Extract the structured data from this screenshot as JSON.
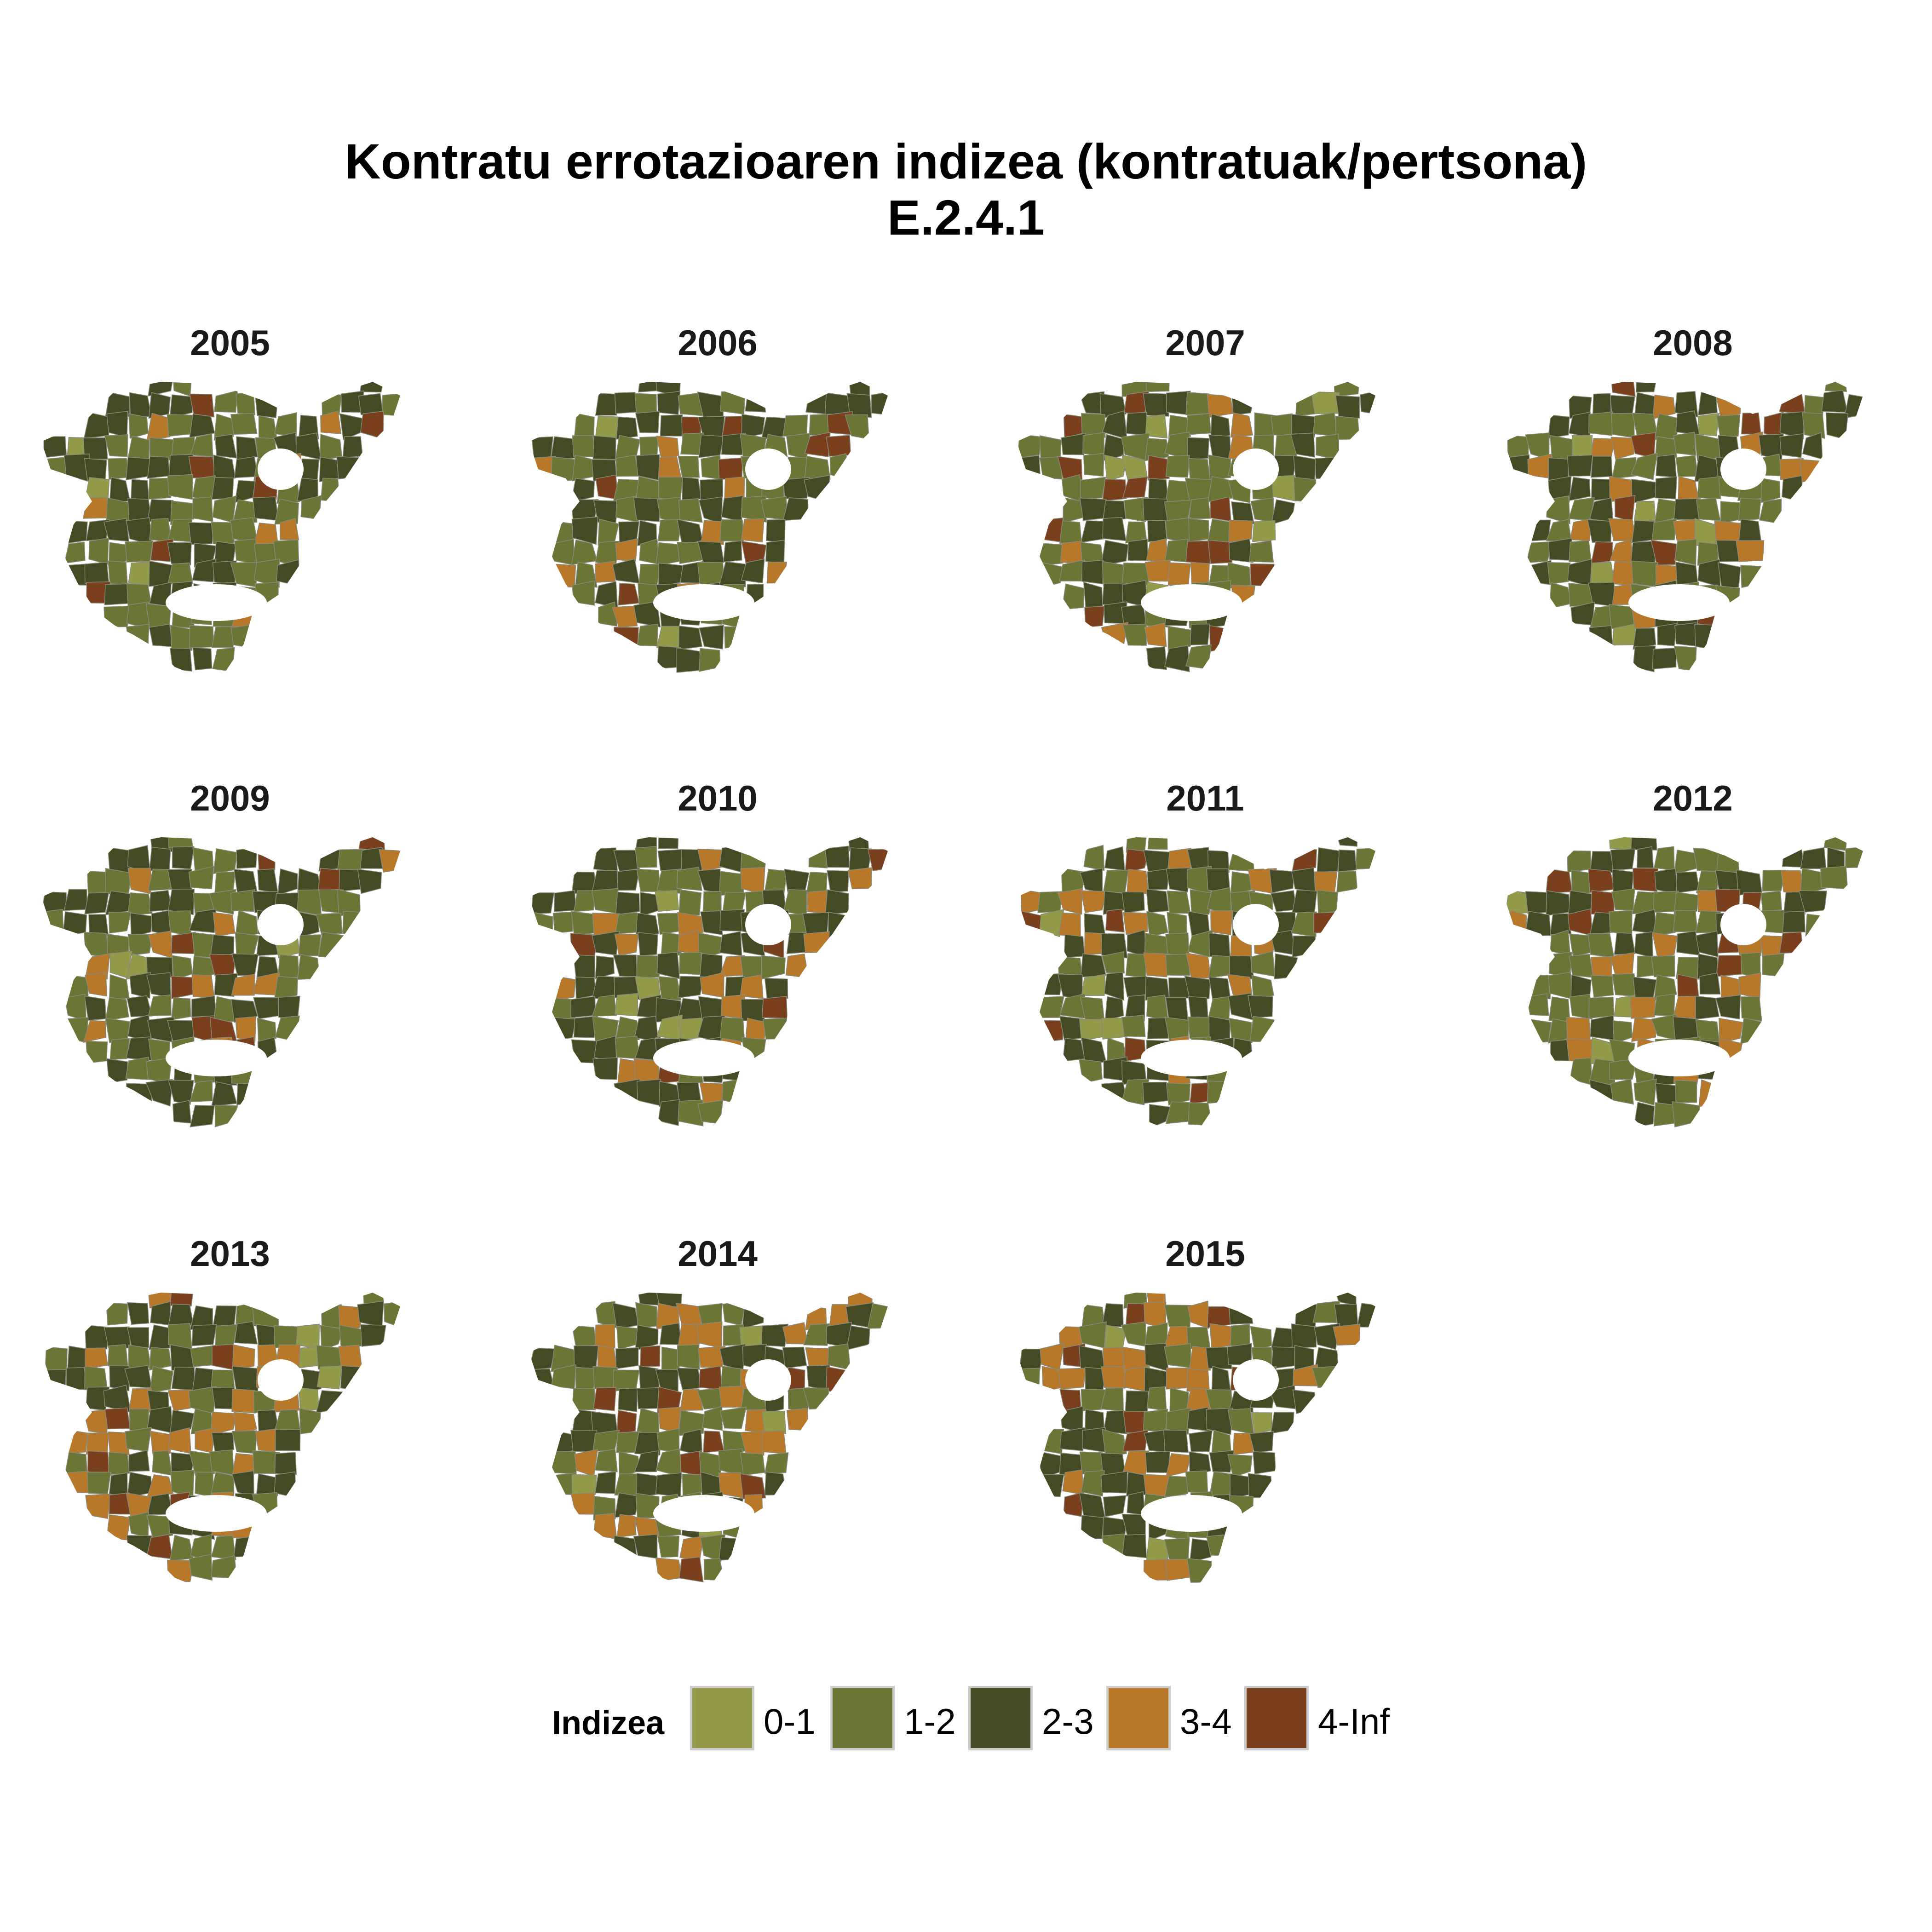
{
  "title": {
    "line1": "Kontratu errotazioaren indizea (kontratuak/pertsona)",
    "line2": "E.2.4.1"
  },
  "legend": {
    "title": "Indizea",
    "items": [
      {
        "label": "0-1",
        "color": "#939b4a"
      },
      {
        "label": "1-2",
        "color": "#6b7535"
      },
      {
        "label": "2-3",
        "color": "#444a24"
      },
      {
        "label": "3-4",
        "color": "#b8782a"
      },
      {
        "label": "4-Inf",
        "color": "#7a3f1c"
      }
    ]
  },
  "panels": [
    {
      "year": "2005"
    },
    {
      "year": "2006"
    },
    {
      "year": "2007"
    },
    {
      "year": "2008"
    },
    {
      "year": "2009"
    },
    {
      "year": "2010"
    },
    {
      "year": "2011"
    },
    {
      "year": "2012"
    },
    {
      "year": "2013"
    },
    {
      "year": "2014"
    },
    {
      "year": "2015"
    }
  ]
}
